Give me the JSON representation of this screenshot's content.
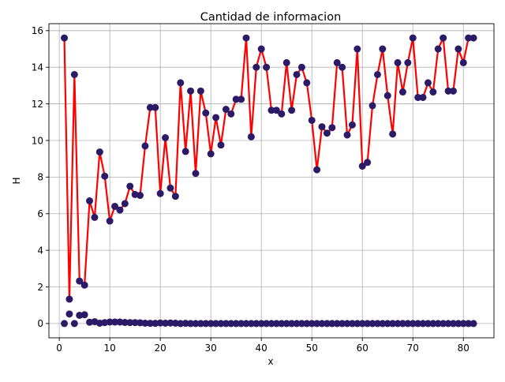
{
  "chart_data": {
    "type": "line",
    "title": "Cantidad de informacion",
    "xlabel": "x",
    "ylabel": "H",
    "xlim": [
      -2.05,
      86.05
    ],
    "ylim": [
      -0.78,
      16.38
    ],
    "xticks": [
      0,
      10,
      20,
      30,
      40,
      50,
      60,
      70,
      80
    ],
    "yticks": [
      0,
      2,
      4,
      6,
      8,
      10,
      12,
      14,
      16
    ],
    "grid": true,
    "line_color": "#ff0000",
    "marker_color": "#2d1a66",
    "series": [
      {
        "style": "line-with-markers",
        "x": [
          1,
          2,
          3,
          4,
          5,
          6,
          7,
          8,
          9,
          10,
          11,
          12,
          13,
          14,
          15,
          16,
          17,
          18,
          19,
          20,
          21,
          22,
          23,
          24,
          25,
          26,
          27,
          28,
          29,
          30,
          31,
          32,
          33,
          34,
          35,
          36,
          37,
          38,
          39,
          40,
          41,
          42,
          43,
          44,
          45,
          46,
          47,
          48,
          49,
          50,
          51,
          52,
          53,
          54,
          55,
          56,
          57,
          58,
          59,
          60,
          61,
          62,
          63,
          64,
          65,
          66,
          67,
          68,
          69,
          70,
          71,
          72,
          73,
          74,
          75,
          76,
          77,
          78,
          79,
          80,
          81,
          82
        ],
        "y": [
          15.6,
          1.33,
          13.6,
          2.32,
          2.1,
          6.7,
          5.8,
          9.37,
          8.05,
          5.6,
          6.4,
          6.2,
          6.55,
          7.5,
          7.05,
          7.0,
          9.7,
          11.8,
          11.8,
          7.1,
          10.15,
          7.4,
          6.95,
          13.15,
          9.4,
          12.7,
          8.2,
          12.7,
          11.5,
          9.27,
          11.25,
          9.75,
          11.7,
          11.45,
          12.25,
          12.25,
          15.6,
          10.2,
          14.0,
          15.0,
          14.0,
          11.65,
          11.65,
          11.45,
          14.25,
          11.65,
          13.6,
          14.0,
          13.15,
          11.1,
          8.4,
          10.75,
          10.4,
          10.7,
          14.25,
          14.0,
          10.3,
          10.85,
          15.0,
          8.6,
          8.8,
          11.9,
          13.6,
          15.0,
          12.45,
          10.35,
          14.25,
          12.65,
          14.25,
          15.6,
          12.35,
          12.35,
          13.15,
          12.65,
          15.0,
          15.6,
          12.7,
          12.7,
          15.0,
          14.25,
          15.6,
          15.6
        ]
      },
      {
        "style": "markers-only",
        "x": [
          1,
          2,
          3,
          4,
          5,
          6,
          7,
          8,
          9,
          10,
          11,
          12,
          13,
          14,
          15,
          16,
          17,
          18,
          19,
          20,
          21,
          22,
          23,
          24,
          25,
          26,
          27,
          28,
          29,
          30,
          31,
          32,
          33,
          34,
          35,
          36,
          37,
          38,
          39,
          40,
          41,
          42,
          43,
          44,
          45,
          46,
          47,
          48,
          49,
          50,
          51,
          52,
          53,
          54,
          55,
          56,
          57,
          58,
          59,
          60,
          61,
          62,
          63,
          64,
          65,
          66,
          67,
          68,
          69,
          70,
          71,
          72,
          73,
          74,
          75,
          76,
          77,
          78,
          79,
          80,
          81,
          82
        ],
        "y": [
          0.0,
          0.52,
          0.0,
          0.45,
          0.48,
          0.07,
          0.1,
          0.02,
          0.05,
          0.08,
          0.08,
          0.08,
          0.06,
          0.05,
          0.05,
          0.04,
          0.02,
          0.01,
          0.01,
          0.03,
          0.02,
          0.03,
          0.02,
          0.0,
          0.01,
          0.0,
          0.0,
          0.0,
          0.0,
          0.0,
          0.0,
          0.0,
          0.0,
          0.0,
          0.0,
          0.0,
          0.0,
          0.0,
          0.0,
          0.0,
          0.0,
          0.0,
          0.0,
          0.0,
          0.0,
          0.0,
          0.0,
          0.0,
          0.0,
          0.0,
          0.0,
          0.0,
          0.0,
          0.0,
          0.0,
          0.0,
          0.0,
          0.0,
          0.0,
          0.0,
          0.0,
          0.0,
          0.0,
          0.0,
          0.0,
          0.0,
          0.0,
          0.0,
          0.0,
          0.0,
          0.0,
          0.0,
          0.0,
          0.0,
          0.0,
          0.0,
          0.0,
          0.0,
          0.0,
          0.0,
          0.0,
          0.0
        ]
      }
    ]
  }
}
